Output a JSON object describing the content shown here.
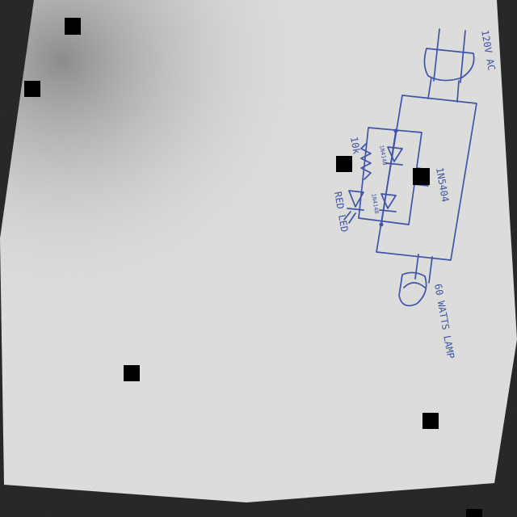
{
  "photo": {
    "subject": "hand-drawn circuit schematic on paper",
    "paper_color": "#e4e4e2",
    "background_color": "#1e1e1f",
    "ink_color": "#3e54a8"
  },
  "schematic": {
    "supply_label": "120V AC",
    "resistor_label": "10k",
    "diode_label": "1N5404",
    "small_diode_label_a": "1N4148",
    "small_diode_label_b": "1N4148",
    "led_label": "RED LED",
    "lamp_label": "60 WATTS LAMP"
  },
  "redaction_marks": [
    {
      "name": "redaction-square-top-left"
    },
    {
      "name": "redaction-square-left"
    },
    {
      "name": "redaction-square-center"
    },
    {
      "name": "redaction-square-right"
    },
    {
      "name": "redaction-square-bottom-left"
    },
    {
      "name": "redaction-square-bottom-right"
    },
    {
      "name": "redaction-square-corner"
    }
  ]
}
